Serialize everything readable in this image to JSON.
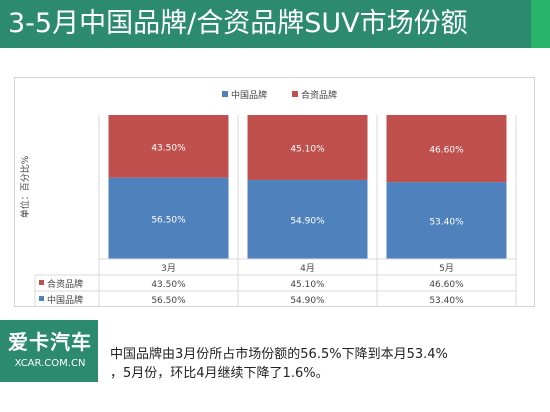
{
  "header": {
    "title": "3-5月中国品牌/合资品牌SUV市场份额"
  },
  "chart_data": {
    "type": "bar",
    "stacked": true,
    "percent_stacked": true,
    "categories": [
      "3月",
      "4月",
      "5月"
    ],
    "ylabel": "单位：百分比%",
    "legend_position": "top",
    "grid": true,
    "series": [
      {
        "name": "中国品牌",
        "values": [
          56.5,
          54.9,
          53.4
        ],
        "labels": [
          "56.50%",
          "54.90%",
          "53.40%"
        ],
        "color": "#4f81bd"
      },
      {
        "name": "合资品牌",
        "values": [
          43.5,
          45.1,
          46.6
        ],
        "labels": [
          "43.50%",
          "45.10%",
          "46.60%"
        ],
        "color": "#c0504d"
      }
    ],
    "data_table": {
      "rows": [
        {
          "name": "合资品牌",
          "cells": [
            "43.50%",
            "45.10%",
            "46.60%"
          ]
        },
        {
          "name": "中国品牌",
          "cells": [
            "56.50%",
            "54.90%",
            "53.40%"
          ]
        }
      ]
    }
  },
  "logo": {
    "main": "爱卡汽车",
    "sub": "XCAR.COM.CN"
  },
  "caption": {
    "line1": "中国品牌由3月份所占市场份额的56.5%下降到本月53.4%",
    "line2": "，5月份，环比4月继续下降了1.6%。"
  },
  "colors": {
    "title_bar": "#2c8a6f",
    "title_accent": "#28b56a",
    "china": "#4f81bd",
    "joint": "#c0504d"
  }
}
